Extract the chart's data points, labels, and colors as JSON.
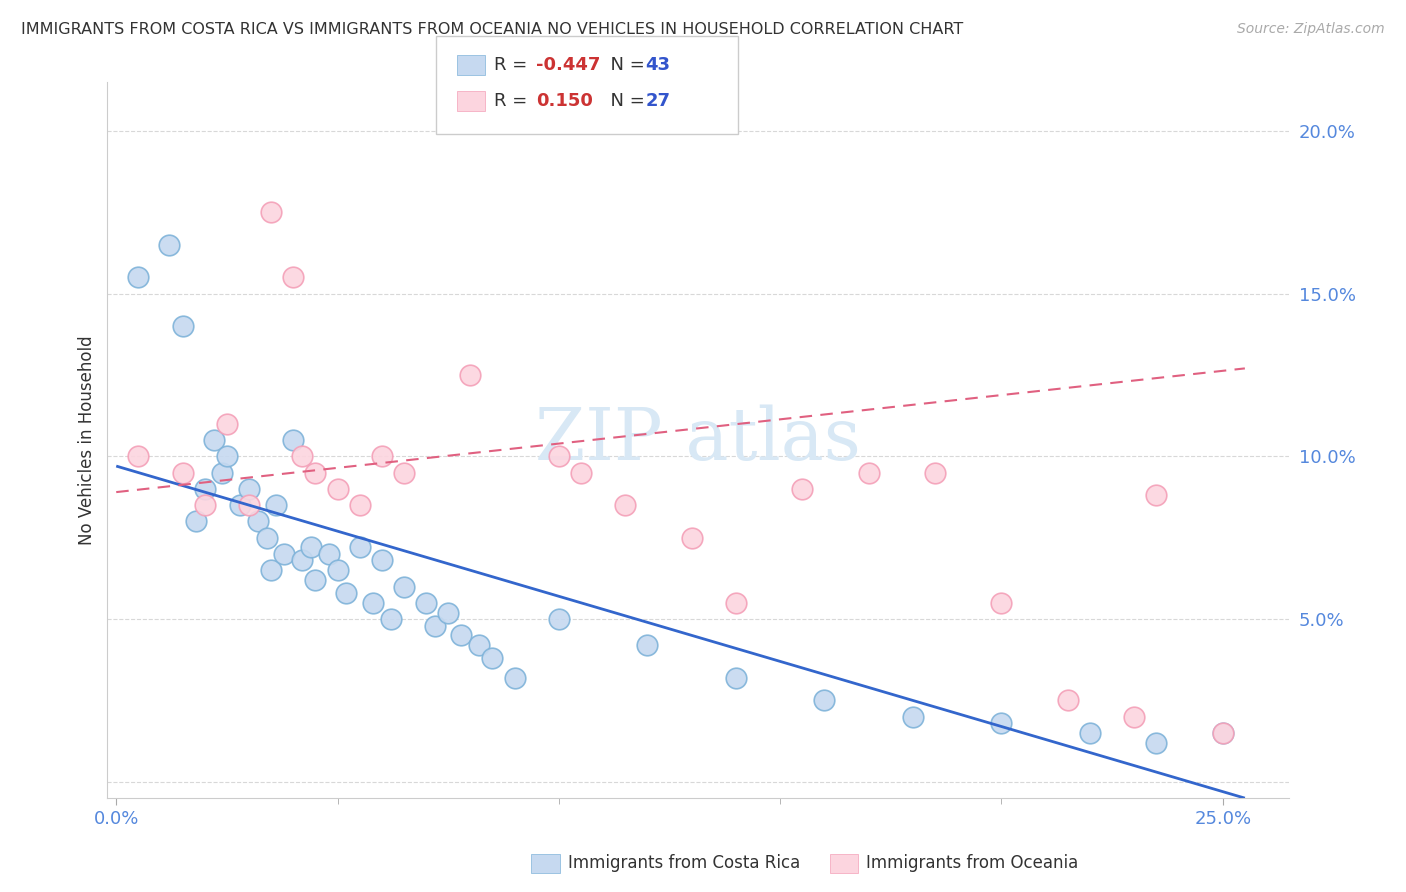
{
  "title": "IMMIGRANTS FROM COSTA RICA VS IMMIGRANTS FROM OCEANIA NO VEHICLES IN HOUSEHOLD CORRELATION CHART",
  "source": "Source: ZipAtlas.com",
  "ylabel": "No Vehicles in Household",
  "ylim": [
    -0.005,
    0.215
  ],
  "xlim": [
    -0.002,
    0.265
  ],
  "yticks": [
    0.0,
    0.05,
    0.1,
    0.15,
    0.2
  ],
  "ytick_labels": [
    "",
    "5.0%",
    "10.0%",
    "15.0%",
    "20.0%"
  ],
  "series1_name": "Immigrants from Costa Rica",
  "series1_color_fill": "#c6d9f0",
  "series1_color_edge": "#7fb3d9",
  "series1_line_color": "#3366cc",
  "series2_name": "Immigrants from Oceania",
  "series2_color_fill": "#fcd5df",
  "series2_color_edge": "#f4a0b8",
  "series2_line_color": "#e06080",
  "R1": -0.447,
  "N1": 43,
  "R2": 0.15,
  "N2": 27,
  "R_color": "#cc3333",
  "N_color": "#3355cc",
  "watermark_color": "#d8e8f5",
  "background_color": "#ffffff",
  "grid_color": "#d8d8d8",
  "blue_line_x0": 0.0,
  "blue_line_y0": 0.097,
  "blue_line_x1": 0.255,
  "blue_line_y1": -0.005,
  "pink_line_x0": 0.0,
  "pink_line_y0": 0.089,
  "pink_line_x1": 0.255,
  "pink_line_y1": 0.127,
  "series1_x": [
    0.005,
    0.012,
    0.015,
    0.018,
    0.02,
    0.022,
    0.024,
    0.025,
    0.028,
    0.03,
    0.032,
    0.034,
    0.035,
    0.036,
    0.038,
    0.04,
    0.042,
    0.044,
    0.045,
    0.048,
    0.05,
    0.052,
    0.055,
    0.058,
    0.06,
    0.062,
    0.065,
    0.07,
    0.072,
    0.075,
    0.078,
    0.082,
    0.085,
    0.09,
    0.1,
    0.12,
    0.14,
    0.16,
    0.18,
    0.2,
    0.22,
    0.235,
    0.25
  ],
  "series1_y": [
    0.155,
    0.165,
    0.14,
    0.08,
    0.09,
    0.105,
    0.095,
    0.1,
    0.085,
    0.09,
    0.08,
    0.075,
    0.065,
    0.085,
    0.07,
    0.105,
    0.068,
    0.072,
    0.062,
    0.07,
    0.065,
    0.058,
    0.072,
    0.055,
    0.068,
    0.05,
    0.06,
    0.055,
    0.048,
    0.052,
    0.045,
    0.042,
    0.038,
    0.032,
    0.05,
    0.042,
    0.032,
    0.025,
    0.02,
    0.018,
    0.015,
    0.012,
    0.015
  ],
  "series2_x": [
    0.005,
    0.015,
    0.02,
    0.025,
    0.03,
    0.035,
    0.04,
    0.042,
    0.045,
    0.05,
    0.055,
    0.06,
    0.065,
    0.08,
    0.1,
    0.105,
    0.115,
    0.13,
    0.14,
    0.155,
    0.17,
    0.185,
    0.2,
    0.215,
    0.23,
    0.235,
    0.25
  ],
  "series2_y": [
    0.1,
    0.095,
    0.085,
    0.11,
    0.085,
    0.175,
    0.155,
    0.1,
    0.095,
    0.09,
    0.085,
    0.1,
    0.095,
    0.125,
    0.1,
    0.095,
    0.085,
    0.075,
    0.055,
    0.09,
    0.095,
    0.095,
    0.055,
    0.025,
    0.02,
    0.088,
    0.015
  ]
}
